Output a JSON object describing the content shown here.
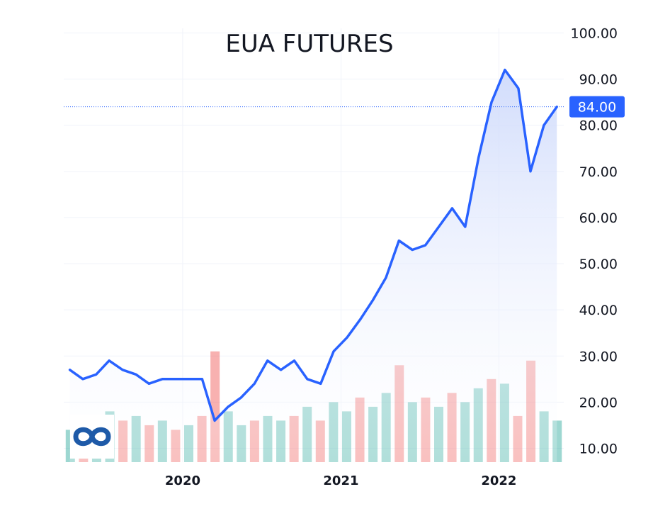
{
  "chart_data": {
    "type": "area",
    "title": "EUA FUTURES",
    "xlabel": "",
    "ylabel": "",
    "x_tick_labels": [
      "2020",
      "2021",
      "2022"
    ],
    "y_tick_labels": [
      "10.00",
      "20.00",
      "30.00",
      "40.00",
      "50.00",
      "60.00",
      "70.00",
      "80.00",
      "90.00",
      "100.00"
    ],
    "ylim": [
      7,
      101
    ],
    "xlim": [
      "2019-04-01",
      "2022-05-31"
    ],
    "grid": true,
    "last_price": {
      "value": 84.0,
      "label": "84.00",
      "color": "#2962ff"
    },
    "colors": {
      "line": "#2962ff",
      "area_top": "#c9d6fb",
      "area_bottom": "#ffffff",
      "grid": "#f0f3fa",
      "volume_up": "#26a69a",
      "volume_down": "#ef5350"
    },
    "series": [
      {
        "x": [
          "2019-04",
          "2019-05",
          "2019-06",
          "2019-07",
          "2019-08",
          "2019-09",
          "2019-10",
          "2019-11",
          "2019-12",
          "2020-01",
          "2020-02",
          "2020-03",
          "2020-04",
          "2020-05",
          "2020-06",
          "2020-07",
          "2020-08",
          "2020-09",
          "2020-10",
          "2020-11",
          "2020-12",
          "2021-01",
          "2021-02",
          "2021-03",
          "2021-04",
          "2021-05",
          "2021-06",
          "2021-07",
          "2021-08",
          "2021-09",
          "2021-10",
          "2021-11",
          "2021-12",
          "2022-01",
          "2022-02",
          "2022-03",
          "2022-04",
          "2022-05"
        ],
        "values": [
          27,
          25,
          26,
          29,
          27,
          26,
          24,
          25,
          25,
          25,
          25,
          16,
          19,
          21,
          24,
          29,
          27,
          29,
          25,
          24,
          31,
          34,
          38,
          42,
          47,
          55,
          53,
          54,
          58,
          62,
          58,
          73,
          85,
          92,
          88,
          70,
          80,
          84
        ]
      }
    ],
    "volume": [
      {
        "v": 14,
        "up": true
      },
      {
        "v": 16,
        "up": false
      },
      {
        "v": 15,
        "up": true
      },
      {
        "v": 18,
        "up": true
      },
      {
        "v": 16,
        "up": false
      },
      {
        "v": 17,
        "up": true
      },
      {
        "v": 15,
        "up": false
      },
      {
        "v": 16,
        "up": true
      },
      {
        "v": 14,
        "up": false
      },
      {
        "v": 15,
        "up": true
      },
      {
        "v": 17,
        "up": false
      },
      {
        "v": 31,
        "up": false
      },
      {
        "v": 18,
        "up": true
      },
      {
        "v": 15,
        "up": true
      },
      {
        "v": 16,
        "up": false
      },
      {
        "v": 17,
        "up": true
      },
      {
        "v": 16,
        "up": true
      },
      {
        "v": 17,
        "up": false
      },
      {
        "v": 19,
        "up": true
      },
      {
        "v": 16,
        "up": false
      },
      {
        "v": 20,
        "up": true
      },
      {
        "v": 18,
        "up": true
      },
      {
        "v": 21,
        "up": false
      },
      {
        "v": 19,
        "up": true
      },
      {
        "v": 22,
        "up": true
      },
      {
        "v": 28,
        "up": false
      },
      {
        "v": 20,
        "up": true
      },
      {
        "v": 21,
        "up": false
      },
      {
        "v": 19,
        "up": true
      },
      {
        "v": 22,
        "up": false
      },
      {
        "v": 20,
        "up": true
      },
      {
        "v": 23,
        "up": true
      },
      {
        "v": 25,
        "up": false
      },
      {
        "v": 24,
        "up": true
      },
      {
        "v": 17,
        "up": false
      },
      {
        "v": 29,
        "up": false
      },
      {
        "v": 18,
        "up": true
      },
      {
        "v": 16,
        "up": true
      }
    ]
  }
}
